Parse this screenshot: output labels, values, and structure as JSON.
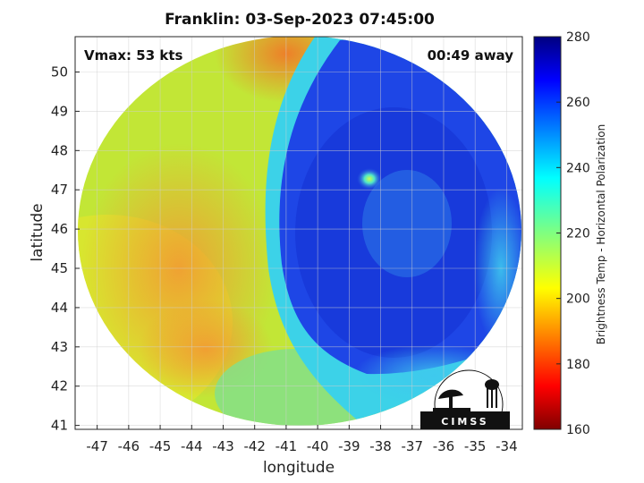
{
  "title": "Franklin: 03-Sep-2023 07:45:00",
  "annotations": {
    "vmax": "Vmax: 53 kts",
    "time_away": "00:49 away"
  },
  "axes": {
    "xlabel": "longitude",
    "ylabel": "latitude",
    "xticks": [
      "-47",
      "-46",
      "-45",
      "-44",
      "-43",
      "-42",
      "-41",
      "-40",
      "-39",
      "-38",
      "-37",
      "-36",
      "-35",
      "-34"
    ],
    "yticks": [
      "41",
      "42",
      "43",
      "44",
      "45",
      "46",
      "47",
      "48",
      "49",
      "50"
    ],
    "xlim": [
      -47.7,
      -33.5
    ],
    "ylim": [
      40.9,
      50.9
    ]
  },
  "colorbar": {
    "label": "Brightness Temp - Horizontal Polarization",
    "ticks": [
      "160",
      "180",
      "200",
      "220",
      "240",
      "260",
      "280"
    ],
    "range": [
      160,
      280
    ],
    "colormap": "jet"
  },
  "logo": {
    "text": "CIMSS"
  },
  "colors": {
    "warm": "#f5a430",
    "cold": "#1e3cdc",
    "eye": "#b4ff5a"
  }
}
